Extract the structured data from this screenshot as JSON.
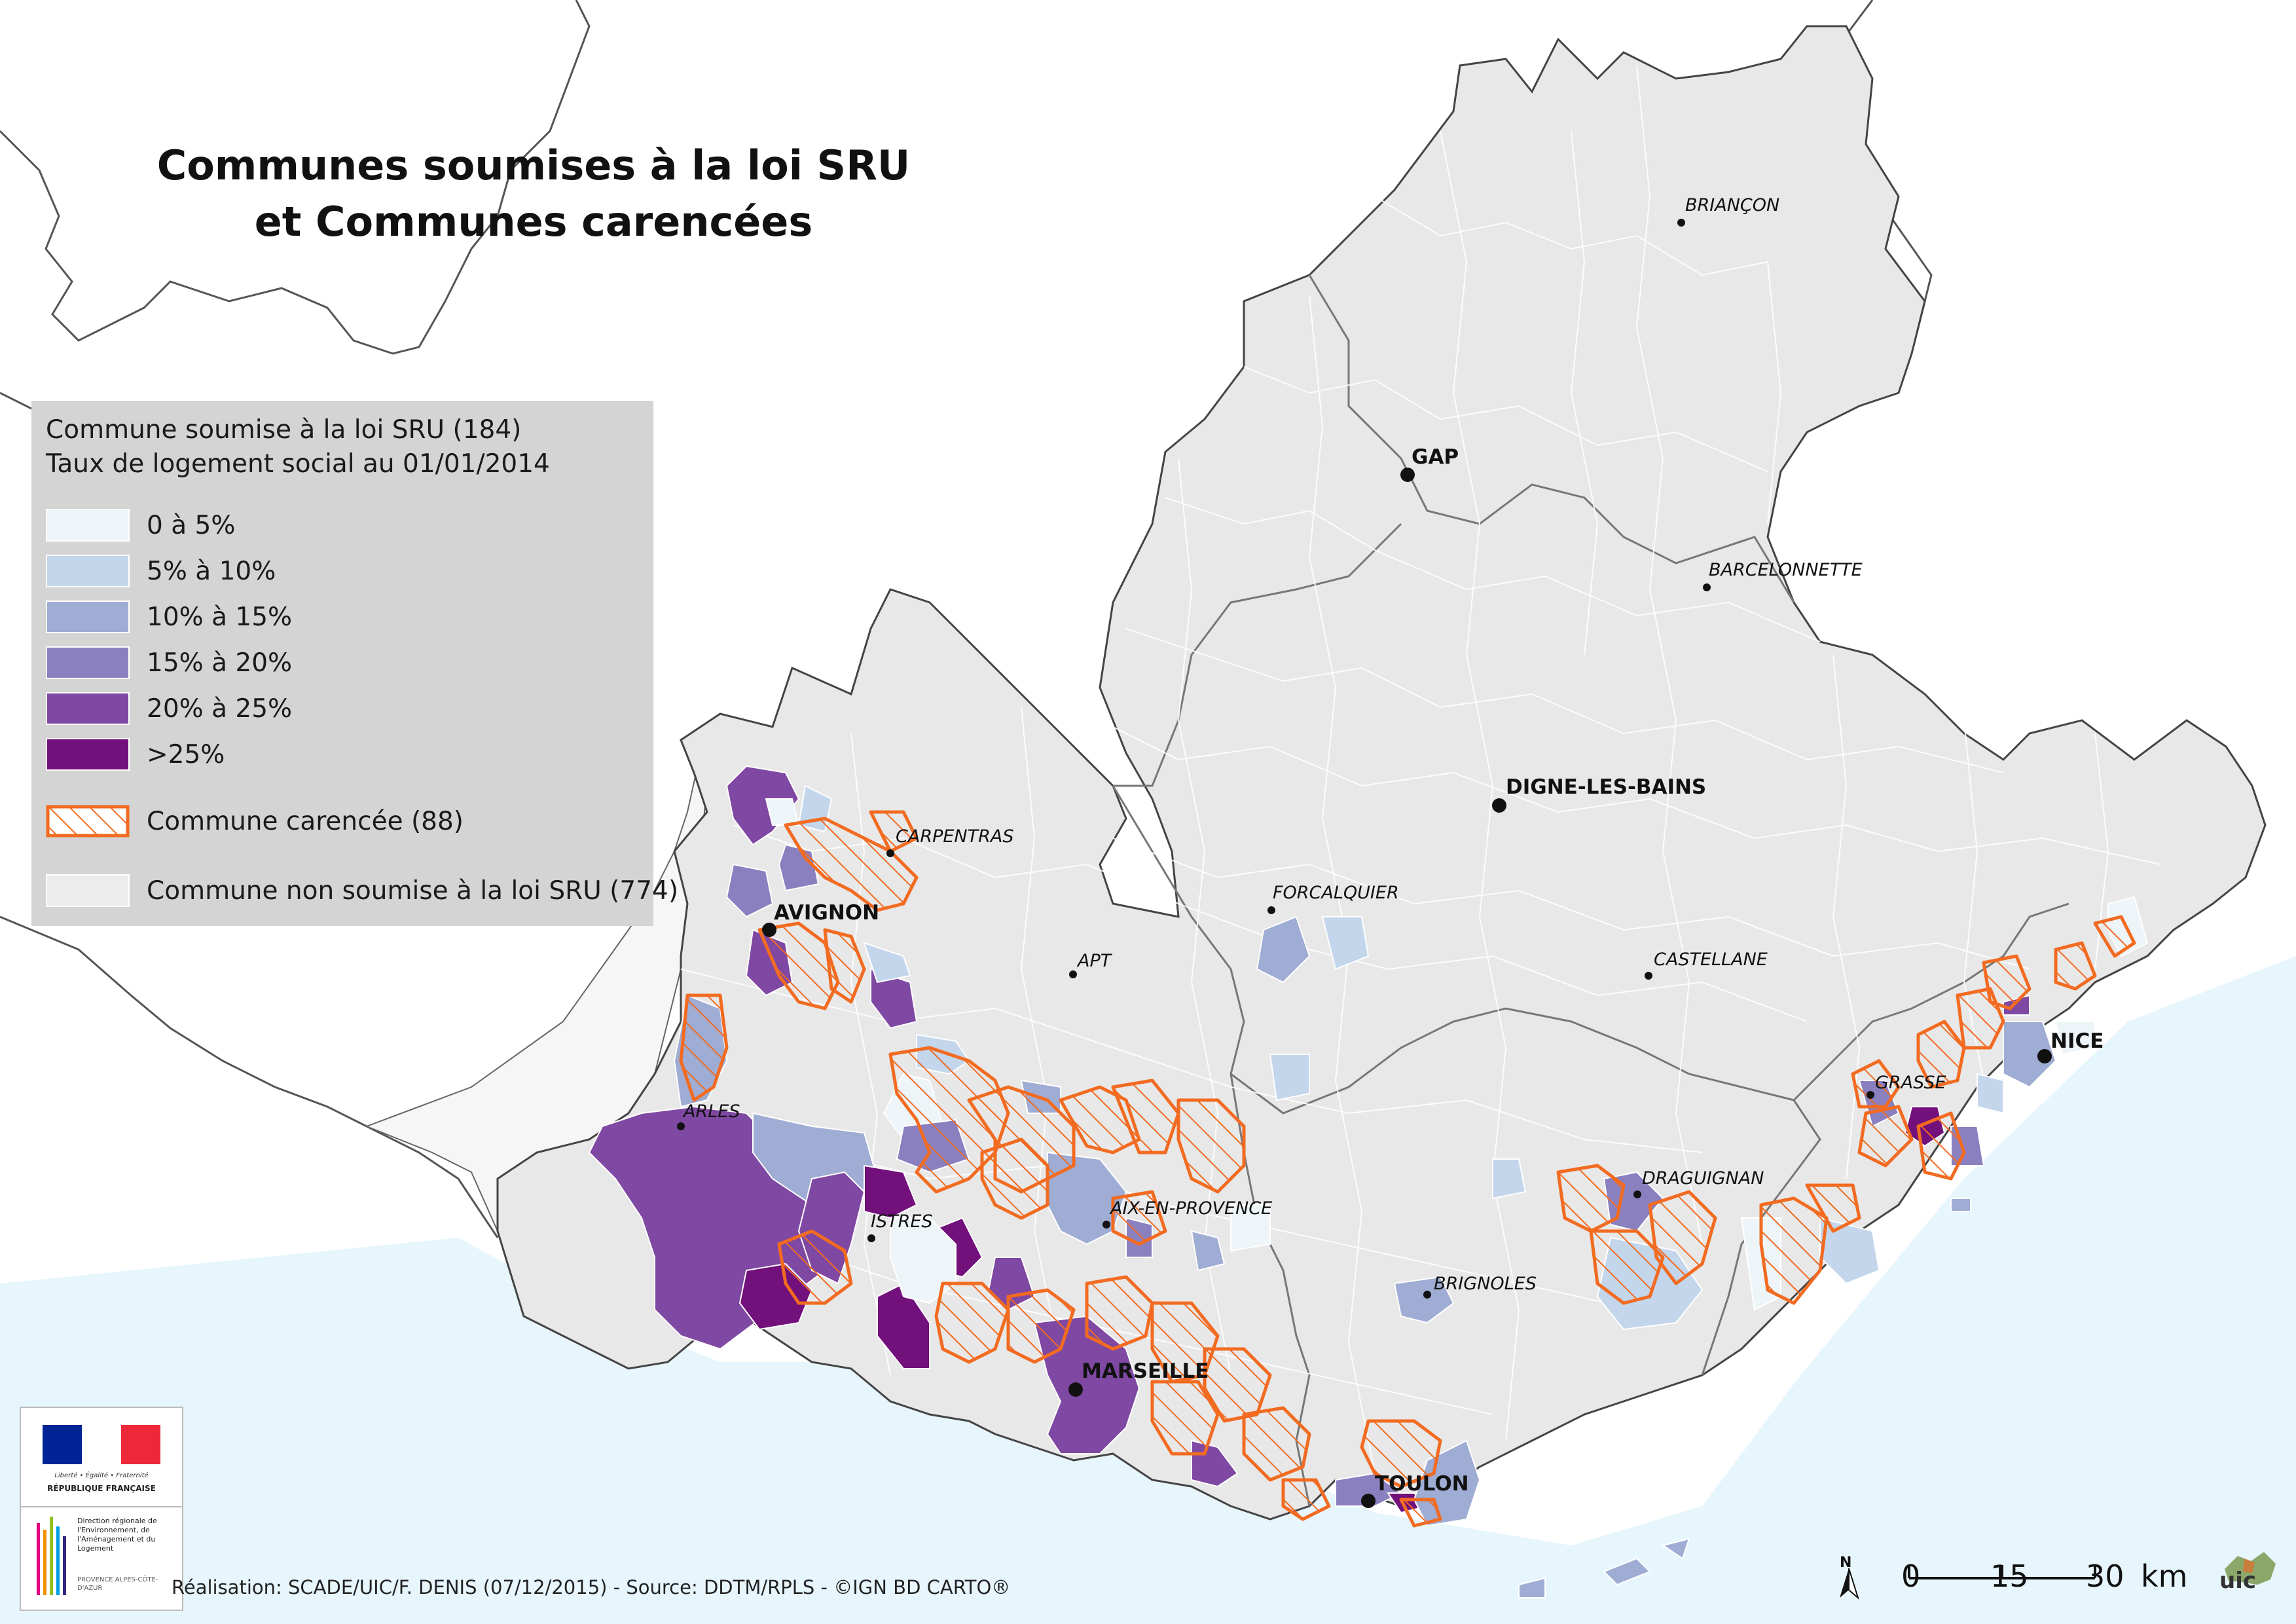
{
  "title": {
    "line1": "Communes soumises à la loi SRU",
    "line2": "et Communes carencées"
  },
  "legend": {
    "heading1": "Commune soumise à la loi SRU (184)",
    "heading2": "Taux de logement social au 01/01/2014",
    "classes": [
      {
        "label": "0 à 5%",
        "color": "#edf5f9"
      },
      {
        "label": "5% à 10%",
        "color": "#c3d6eb"
      },
      {
        "label": "10% à 15%",
        "color": "#9facd3"
      },
      {
        "label": "15% à 20%",
        "color": "#8a80c0"
      },
      {
        "label": "20% à 25%",
        "color": "#7f48a2"
      },
      {
        "label": ">25%",
        "color": "#72107c"
      }
    ],
    "carencee_label": "Commune carencée (88)",
    "carencee_color": "#f26b21",
    "non_soumise_label": "Commune non soumise à la loi SRU (774)",
    "non_soumise_color": "#ececec"
  },
  "colors": {
    "sea": "#e7f6fd",
    "land": "#e8e8e8",
    "outside": "#ffffff",
    "border": "#555555"
  },
  "cities": {
    "briancon": "BRIANÇON",
    "gap": "GAP",
    "barcelonnette": "BARCELONNETTE",
    "digne": "DIGNE-LES-BAINS",
    "carpentras": "CARPENTRAS",
    "forcalquier": "FORCALQUIER",
    "avignon": "AVIGNON",
    "apt": "APT",
    "castellane": "CASTELLANE",
    "nice": "NICE",
    "grasse": "GRASSE",
    "arles": "ARLES",
    "draguignan": "DRAGUIGNAN",
    "aix": "AIX-EN-PROVENCE",
    "istres": "ISTRES",
    "brignoles": "BRIGNOLES",
    "marseille": "MARSEILLE",
    "toulon": "TOULON"
  },
  "credit": "Réalisation: SCADE/UIC/F. DENIS (07/12/2015) - Source: DDTM/RPLS - ©IGN BD CARTO®",
  "logo": {
    "motto": "Liberté • Égalité • Fraternité",
    "republique": "RÉPUBLIQUE FRANÇAISE",
    "dreal": "Direction régionale de l'Environnement, de l'Aménagement et du Logement",
    "region": "PROVENCE ALPES-CÔTE-D'AZUR",
    "flag_colors": [
      "#002395",
      "#ffffff",
      "#ed2939"
    ]
  },
  "scale": {
    "ticks": [
      "0",
      "15",
      "30"
    ],
    "unit": "km"
  },
  "north": "N",
  "uic_logo_text": "uic"
}
